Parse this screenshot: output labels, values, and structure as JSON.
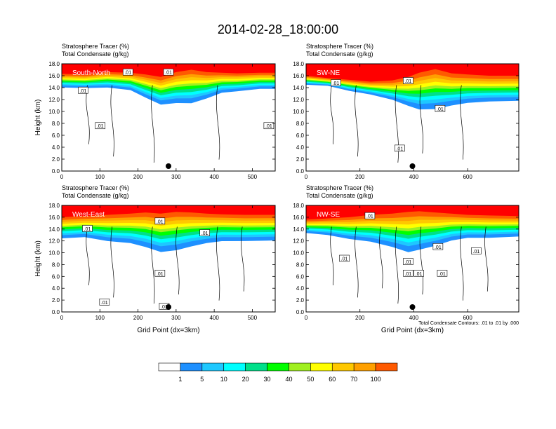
{
  "title": "2014-02-28_18:00:00",
  "colors": {
    "levels": [
      "#ffffff",
      "#1e90ff",
      "#1ec8ff",
      "#00ffff",
      "#00e08a",
      "#00ff00",
      "#a0f020",
      "#ffff00",
      "#ffc800",
      "#ffa000",
      "#ff5a00",
      "#ff0000"
    ],
    "contour": "#000000",
    "marker": "#000000"
  },
  "colorbar": {
    "labels": [
      "1",
      "5",
      "10",
      "20",
      "30",
      "40",
      "50",
      "60",
      "70",
      "100"
    ]
  },
  "note": "Total Condensate Contours: .01 to .01 by .000",
  "chart_data": [
    {
      "type": "heatmap",
      "name": "South-North",
      "header1": "Stratosphere Tracer   (%)",
      "header2": "Total Condensate   (g/kg)",
      "ylabel": "Height (km)",
      "xlabel": "",
      "xlim": [
        0,
        560
      ],
      "ylim": [
        0,
        18
      ],
      "xticks": [
        "0",
        "100",
        "200",
        "300",
        "400",
        "500"
      ],
      "yticks": [
        "0.0",
        "2.0",
        "4.0",
        "6.0",
        "8.0",
        "10.0",
        "12.0",
        "14.0",
        "16.0",
        "18.0"
      ],
      "contour_labels": [
        ".01",
        ".01",
        ".01",
        ".01",
        ".01"
      ],
      "marker_x": 280,
      "layer": {
        "x": [
          0,
          60,
          120,
          180,
          220,
          260,
          300,
          340,
          380,
          420,
          460,
          520,
          560
        ],
        "top_red": [
          16.3,
          16.2,
          16.6,
          16.5,
          16.2,
          15.8,
          16.6,
          17.0,
          16.6,
          16.5,
          16.4,
          16.5,
          16.5
        ],
        "base": [
          14.2,
          14.1,
          14.2,
          13.8,
          12.6,
          11.5,
          11.8,
          11.8,
          12.5,
          13.4,
          13.6,
          14.0,
          14.0
        ]
      }
    },
    {
      "type": "heatmap",
      "name": "SW-NE",
      "header1": "Stratosphere Tracer   (%)",
      "header2": "Total Condensate   (g/kg)",
      "ylabel": "",
      "xlabel": "",
      "xlim": [
        0,
        790
      ],
      "ylim": [
        0,
        18
      ],
      "xticks": [
        "0",
        "200",
        "400",
        "600"
      ],
      "yticks": [
        "0.0",
        "2.0",
        "4.0",
        "6.0",
        "8.0",
        "10.0",
        "12.0",
        "14.0",
        "16.0",
        "18.0"
      ],
      "contour_labels": [
        ".01",
        ".01",
        ".01",
        ".01"
      ],
      "marker_x": 395,
      "layer": {
        "x": [
          0,
          80,
          160,
          240,
          320,
          380,
          420,
          480,
          540,
          600,
          680,
          790
        ],
        "top_red": [
          16.0,
          15.6,
          15.3,
          15.0,
          15.2,
          15.8,
          16.5,
          17.1,
          16.4,
          16.2,
          16.0,
          16.0
        ],
        "base": [
          14.6,
          14.4,
          13.6,
          13.0,
          12.2,
          11.3,
          10.8,
          10.9,
          11.4,
          11.8,
          12.0,
          12.1
        ]
      }
    },
    {
      "type": "heatmap",
      "name": "West-East",
      "header1": "Stratosphere Tracer   (%)",
      "header2": "Total Condensate   (g/kg)",
      "ylabel": "Height (km)",
      "xlabel": "Grid Point (dx=3km)",
      "xlim": [
        0,
        560
      ],
      "ylim": [
        0,
        18
      ],
      "xticks": [
        "0",
        "100",
        "200",
        "300",
        "400",
        "500"
      ],
      "yticks": [
        "0.0",
        "2.0",
        "4.0",
        "6.0",
        "8.0",
        "10.0",
        "12.0",
        "14.0",
        "16.0",
        "18.0"
      ],
      "contour_labels": [
        ".01",
        ".01",
        ".01",
        ".01",
        ".01",
        ".01"
      ],
      "marker_x": 280,
      "layer": {
        "x": [
          0,
          60,
          120,
          180,
          220,
          260,
          300,
          340,
          380,
          420,
          480,
          560
        ],
        "top_red": [
          16.0,
          16.2,
          16.4,
          16.6,
          16.8,
          16.6,
          16.9,
          16.8,
          16.6,
          16.5,
          16.4,
          16.4
        ],
        "base": [
          12.7,
          12.9,
          12.3,
          12.0,
          11.4,
          10.6,
          10.9,
          11.5,
          12.0,
          12.3,
          12.3,
          12.4
        ]
      }
    },
    {
      "type": "heatmap",
      "name": "NW-SE",
      "header1": "Stratosphere Tracer   (%)",
      "header2": "Total Condensate   (g/kg)",
      "ylabel": "",
      "xlabel": "Grid Point (dx=3km)",
      "xlim": [
        0,
        790
      ],
      "ylim": [
        0,
        18
      ],
      "xticks": [
        "0",
        "200",
        "400",
        "600"
      ],
      "yticks": [
        "0.0",
        "2.0",
        "4.0",
        "6.0",
        "8.0",
        "10.0",
        "12.0",
        "14.0",
        "16.0",
        "18.0"
      ],
      "contour_labels": [
        ".01",
        ".01",
        ".01",
        ".01",
        ".01",
        ".01",
        ".01",
        ".01"
      ],
      "marker_x": 395,
      "layer": {
        "x": [
          0,
          80,
          160,
          240,
          320,
          380,
          420,
          480,
          540,
          600,
          680,
          790
        ],
        "top_red": [
          15.6,
          15.8,
          16.0,
          16.4,
          16.6,
          16.9,
          17.0,
          16.8,
          16.6,
          16.4,
          16.3,
          16.2
        ],
        "base": [
          13.5,
          13.2,
          12.6,
          12.2,
          11.4,
          10.6,
          11.0,
          11.6,
          12.4,
          12.8,
          12.8,
          13.0
        ]
      }
    }
  ]
}
